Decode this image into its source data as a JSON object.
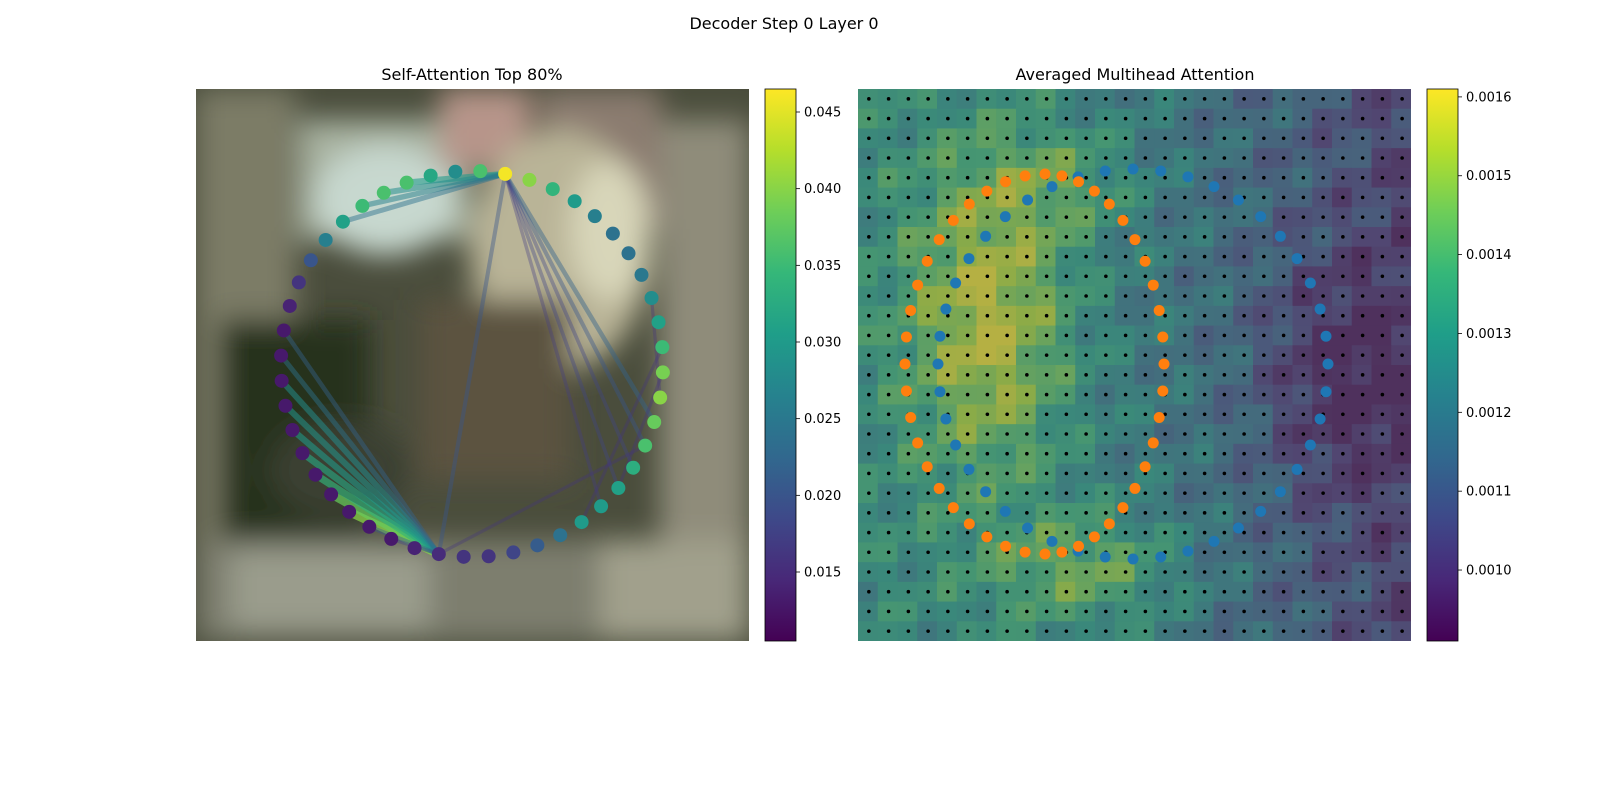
{
  "figure": {
    "title": "Decoder Step 0 Layer 0"
  },
  "chart_data": [
    {
      "type": "scatter",
      "title": "Self-Attention Top 80%",
      "description_of_points": "outer ring of the left-panel polygon (tokens 0-47), colored by attention weight",
      "colorbar": {
        "vmin": 0.0105,
        "vmax": 0.0465,
        "ticks": [
          0.015,
          0.02,
          0.025,
          0.03,
          0.035,
          0.04,
          0.045
        ],
        "tick_labels": [
          "0.015",
          "0.020",
          "0.025",
          "0.030",
          "0.035",
          "0.040",
          "0.045"
        ]
      },
      "colormap": "viridis",
      "ring": {
        "center": [
          472,
          364
        ],
        "radius": 193,
        "count": 48
      },
      "point_values": [
        0.046,
        0.04,
        0.034,
        0.03,
        0.026,
        0.024,
        0.024,
        0.025,
        0.028,
        0.031,
        0.035,
        0.039,
        0.04,
        0.038,
        0.036,
        0.033,
        0.031,
        0.03,
        0.03,
        0.024,
        0.021,
        0.018,
        0.016,
        0.016,
        0.015,
        0.014,
        0.013,
        0.013,
        0.013,
        0.013,
        0.013,
        0.013,
        0.013,
        0.013,
        0.013,
        0.013,
        0.013,
        0.014,
        0.016,
        0.02,
        0.026,
        0.031,
        0.035,
        0.036,
        0.036,
        0.032,
        0.028,
        0.036
      ],
      "edges": [
        {
          "from": 0,
          "to": 44,
          "value": 0.03
        },
        {
          "from": 0,
          "to": 43,
          "value": 0.028
        },
        {
          "from": 0,
          "to": 42,
          "value": 0.026
        },
        {
          "from": 0,
          "to": 41,
          "value": 0.024
        },
        {
          "from": 0,
          "to": 13,
          "value": 0.022
        },
        {
          "from": 0,
          "to": 14,
          "value": 0.02
        },
        {
          "from": 0,
          "to": 15,
          "value": 0.018
        },
        {
          "from": 0,
          "to": 16,
          "value": 0.018
        },
        {
          "from": 0,
          "to": 17,
          "value": 0.017
        },
        {
          "from": 0,
          "to": 24,
          "value": 0.02
        },
        {
          "from": 24,
          "to": 28,
          "value": 0.04
        },
        {
          "from": 24,
          "to": 29,
          "value": 0.038
        },
        {
          "from": 24,
          "to": 30,
          "value": 0.034
        },
        {
          "from": 24,
          "to": 31,
          "value": 0.032
        },
        {
          "from": 24,
          "to": 32,
          "value": 0.03
        },
        {
          "from": 24,
          "to": 33,
          "value": 0.029
        },
        {
          "from": 24,
          "to": 34,
          "value": 0.028
        },
        {
          "from": 24,
          "to": 35,
          "value": 0.024
        },
        {
          "from": 24,
          "to": 36,
          "value": 0.022
        },
        {
          "from": 24,
          "to": 27,
          "value": 0.021
        },
        {
          "from": 24,
          "to": 26,
          "value": 0.018
        },
        {
          "from": 24,
          "to": 14,
          "value": 0.016
        },
        {
          "from": 16,
          "to": 11,
          "value": 0.016
        },
        {
          "from": 18,
          "to": 10,
          "value": 0.016
        },
        {
          "from": 12,
          "to": 8,
          "value": 0.016
        }
      ]
    },
    {
      "type": "heatmap",
      "title": "Averaged Multihead Attention",
      "colormap": "viridis",
      "grid": {
        "rows": 28,
        "cols": 28
      },
      "colorbar": {
        "vmin": 0.00091,
        "vmax": 0.00161,
        "ticks": [
          0.001,
          0.0011,
          0.0012,
          0.0013,
          0.0014,
          0.0015,
          0.0016
        ],
        "tick_labels": [
          "0.0010",
          "0.0011",
          "0.0012",
          "0.0013",
          "0.0014",
          "0.0015",
          "0.0016"
        ]
      },
      "overlays": [
        {
          "name": "outer-contour",
          "color": "#1f77b4",
          "count": 44
        },
        {
          "name": "inner-contour",
          "color": "#ff7f0e",
          "count": 44
        }
      ]
    }
  ]
}
